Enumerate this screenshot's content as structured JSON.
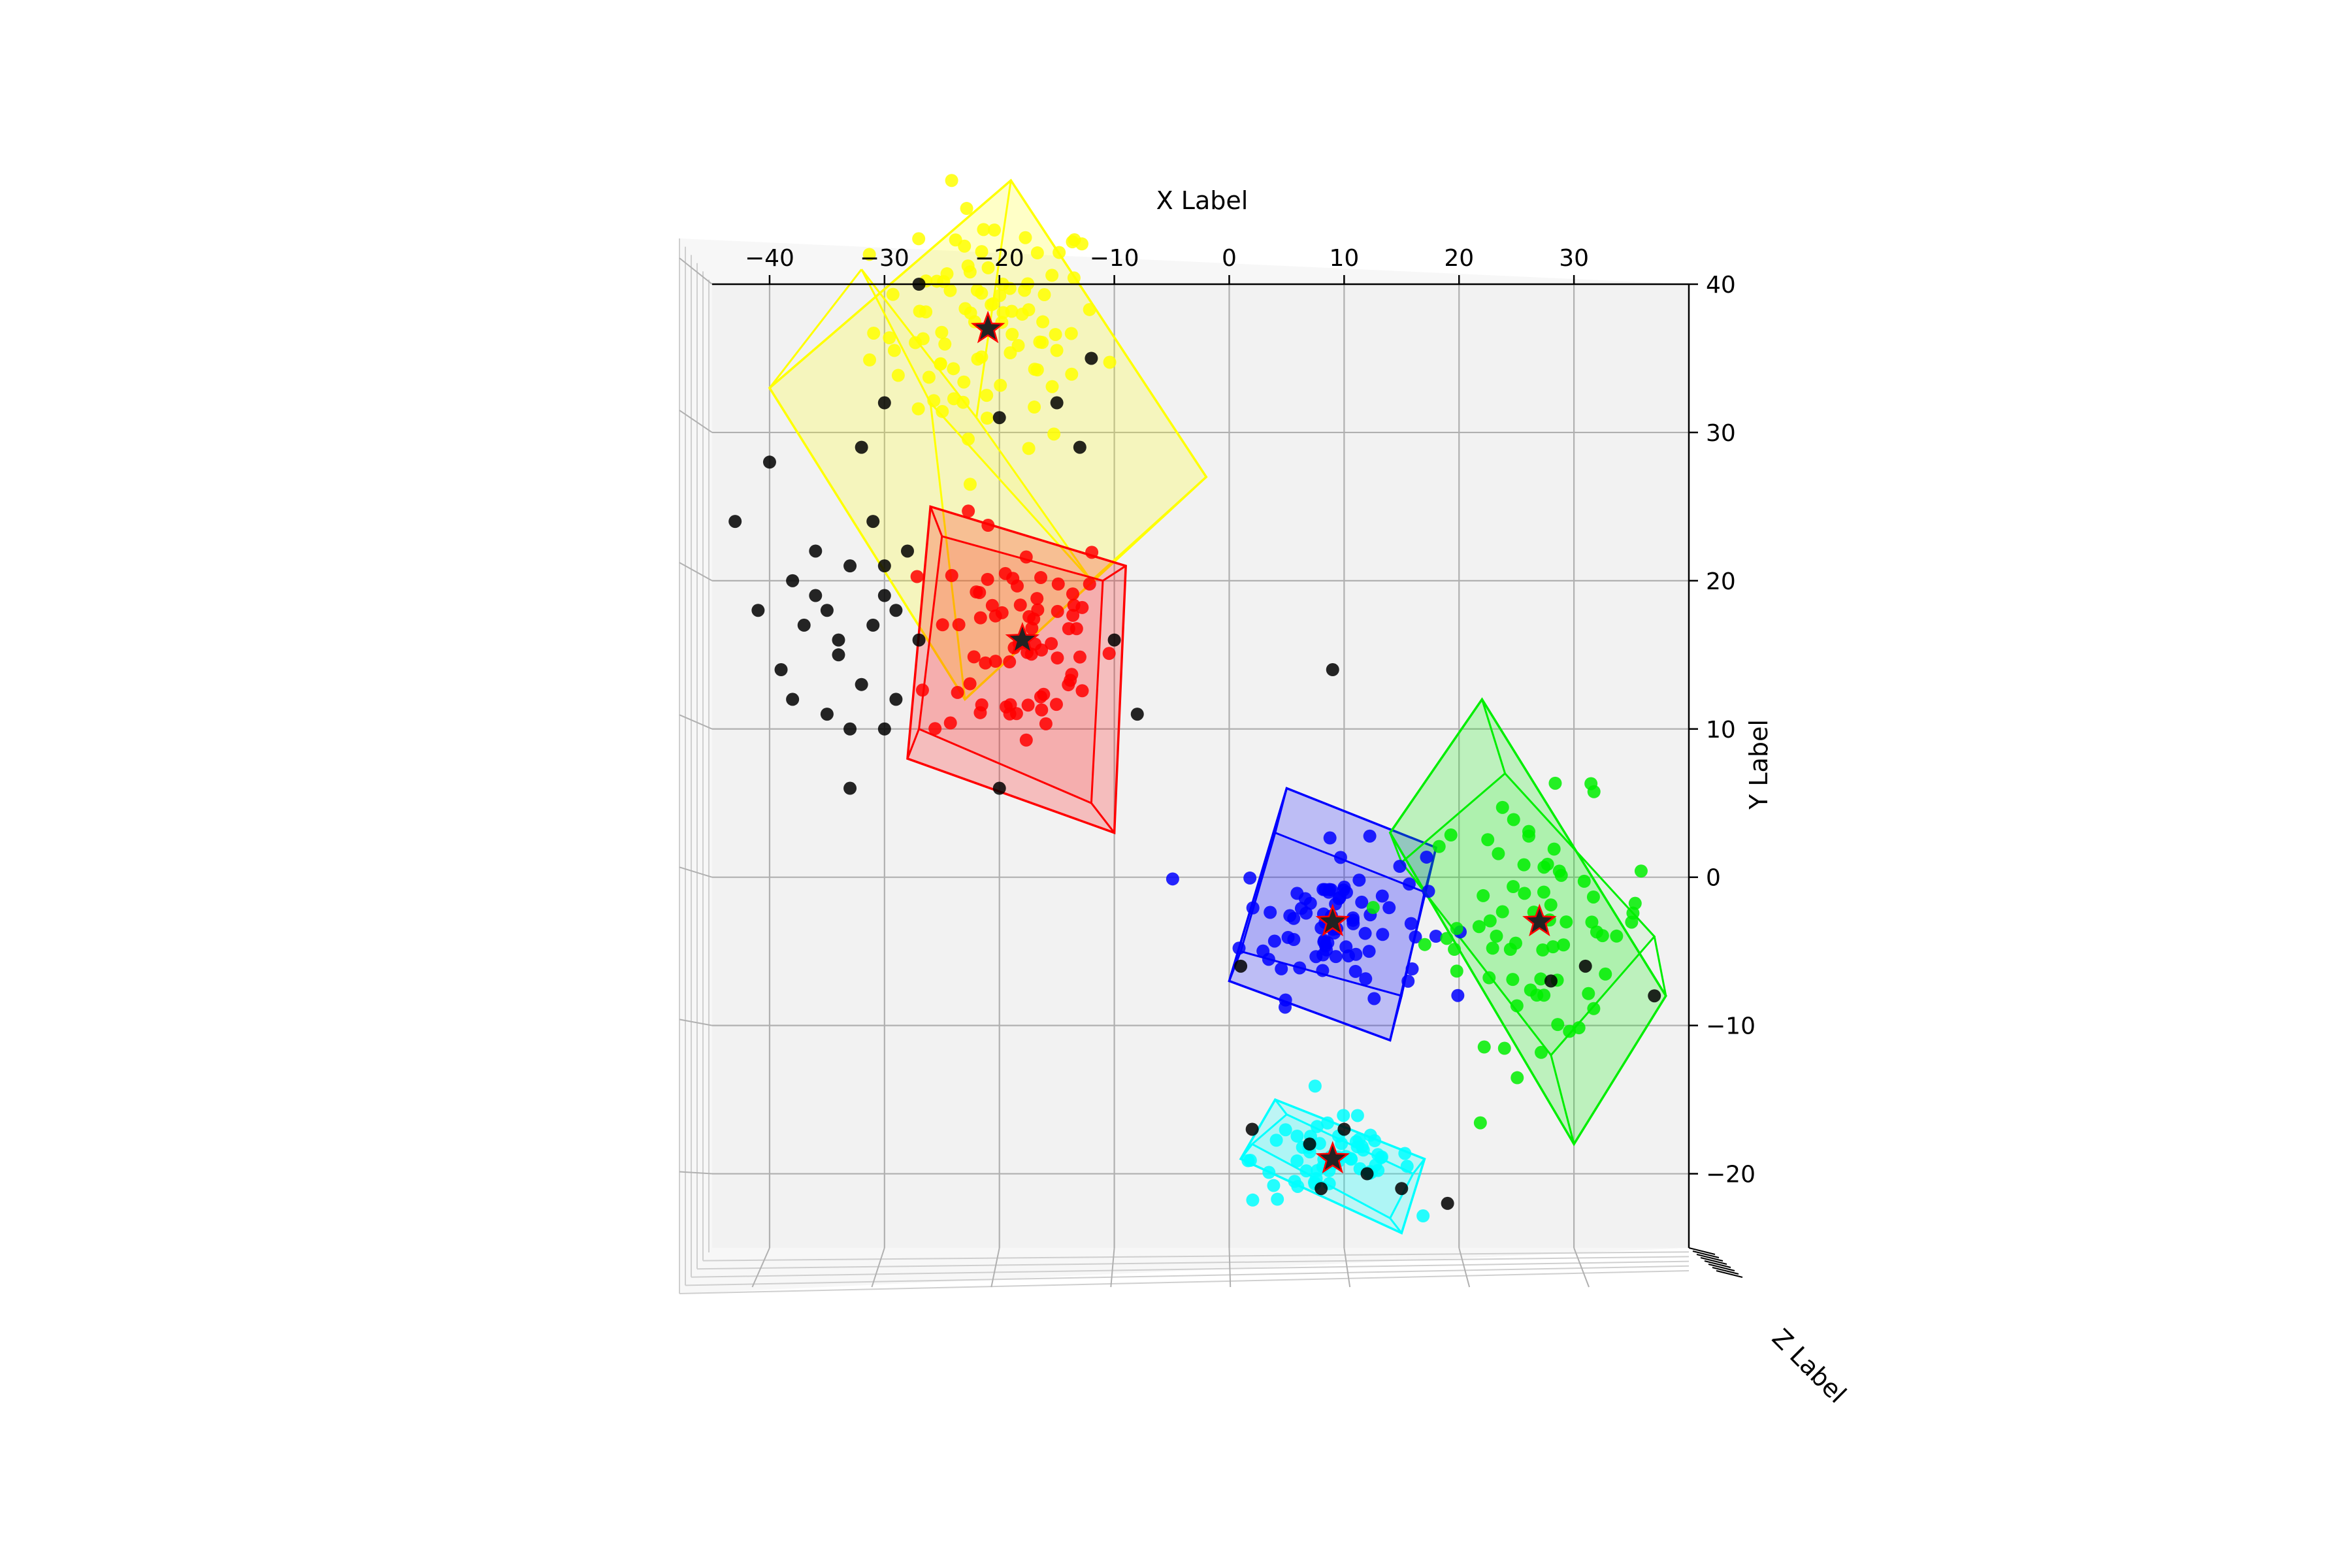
{
  "chart_data": {
    "type": "scatter",
    "projection": "3d, viewed from top",
    "xlabel": "X Label",
    "ylabel": "Y Label",
    "zlabel": "Z Label",
    "xlim": [
      -45,
      40
    ],
    "ylim": [
      -25,
      40
    ],
    "xticks": [
      -40,
      -30,
      -20,
      -10,
      0,
      10,
      20,
      30
    ],
    "yticks": [
      -20,
      -10,
      0,
      10,
      20,
      30,
      40
    ],
    "xtick_labels": [
      "−40",
      "−30",
      "−20",
      "−10",
      "0",
      "10",
      "20",
      "30"
    ],
    "ytick_labels": [
      "−20",
      "−10",
      "0",
      "10",
      "20",
      "30",
      "40"
    ],
    "zaxis_text": "Z Label",
    "grid": true,
    "colors": {
      "pane": "#f2f2f2",
      "grid": "#b0b0b0",
      "noise": "#000000",
      "centroid": "#ff0000"
    },
    "clusters": [
      {
        "color": "#ffff00",
        "center": [
          -21,
          37
        ],
        "spread": [
          5,
          4
        ],
        "n": 90,
        "box_outer": [
          [
            -40,
            33
          ],
          [
            -19,
            47
          ],
          [
            -2,
            27
          ],
          [
            -23,
            12
          ]
        ],
        "box_inner": [
          [
            -32,
            41
          ],
          [
            -22,
            31
          ],
          [
            -12,
            20
          ],
          [
            -26,
            32
          ]
        ]
      },
      {
        "color": "#ff0000",
        "center": [
          -18,
          16
        ],
        "spread": [
          4,
          4
        ],
        "n": 70,
        "box_outer": [
          [
            -26,
            25
          ],
          [
            -9,
            21
          ],
          [
            -10,
            3
          ],
          [
            -28,
            8
          ]
        ],
        "box_inner": [
          [
            -25,
            23
          ],
          [
            -11,
            20
          ],
          [
            -12,
            5
          ],
          [
            -27,
            10
          ]
        ]
      },
      {
        "color": "#0000ff",
        "center": [
          9,
          -3
        ],
        "spread": [
          4,
          2.5
        ],
        "n": 80,
        "box_outer": [
          [
            5,
            6
          ],
          [
            18,
            2
          ],
          [
            14,
            -11
          ],
          [
            0,
            -7
          ]
        ],
        "box_inner": [
          [
            4,
            3
          ],
          [
            17,
            -1
          ],
          [
            15,
            -8
          ],
          [
            1,
            -5
          ]
        ]
      },
      {
        "color": "#00ee00",
        "center": [
          27,
          -3
        ],
        "spread": [
          5,
          4
        ],
        "n": 70,
        "box_outer": [
          [
            22,
            12
          ],
          [
            38,
            -8
          ],
          [
            30,
            -18
          ],
          [
            14,
            3
          ]
        ],
        "box_inner": [
          [
            24,
            7
          ],
          [
            37,
            -4
          ],
          [
            28,
            -12
          ],
          [
            15,
            1
          ]
        ]
      },
      {
        "color": "#00ffff",
        "center": [
          9,
          -19
        ],
        "spread": [
          3.5,
          1.5
        ],
        "n": 60,
        "box_outer": [
          [
            4,
            -15
          ],
          [
            17,
            -19
          ],
          [
            15,
            -24
          ],
          [
            1,
            -19
          ]
        ],
        "box_inner": [
          [
            5,
            -16
          ],
          [
            16,
            -20
          ],
          [
            14,
            -23
          ],
          [
            2,
            -18
          ]
        ]
      }
    ],
    "noise_points": [
      [
        -43,
        24
      ],
      [
        -40,
        28
      ],
      [
        -38,
        20
      ],
      [
        -41,
        18
      ],
      [
        -37,
        17
      ],
      [
        -39,
        14
      ],
      [
        -36,
        22
      ],
      [
        -35,
        18
      ],
      [
        -33,
        21
      ],
      [
        -34,
        15
      ],
      [
        -31,
        17
      ],
      [
        -32,
        13
      ],
      [
        -30,
        19
      ],
      [
        -29,
        12
      ],
      [
        -35,
        11
      ],
      [
        -38,
        12
      ],
      [
        -33,
        10
      ],
      [
        -30,
        10
      ],
      [
        -27,
        16
      ],
      [
        -28,
        22
      ],
      [
        -32,
        29
      ],
      [
        -30,
        32
      ],
      [
        -27,
        40
      ],
      [
        -12,
        35
      ],
      [
        -15,
        32
      ],
      [
        -13,
        29
      ],
      [
        -20,
        31
      ],
      [
        -31,
        24
      ],
      [
        -34,
        16
      ],
      [
        -36,
        19
      ],
      [
        -33,
        6
      ],
      [
        -10,
        16
      ],
      [
        -8,
        11
      ],
      [
        -20,
        6
      ],
      [
        9,
        14
      ],
      [
        1,
        -6
      ],
      [
        28,
        -7
      ],
      [
        37,
        -8
      ],
      [
        31,
        -6
      ],
      [
        2,
        -17
      ],
      [
        7,
        -18
      ],
      [
        8,
        -21
      ],
      [
        12,
        -20
      ],
      [
        19,
        -22
      ],
      [
        15,
        -21
      ],
      [
        10,
        -17
      ],
      [
        -30,
        21
      ],
      [
        -29,
        18
      ]
    ]
  }
}
